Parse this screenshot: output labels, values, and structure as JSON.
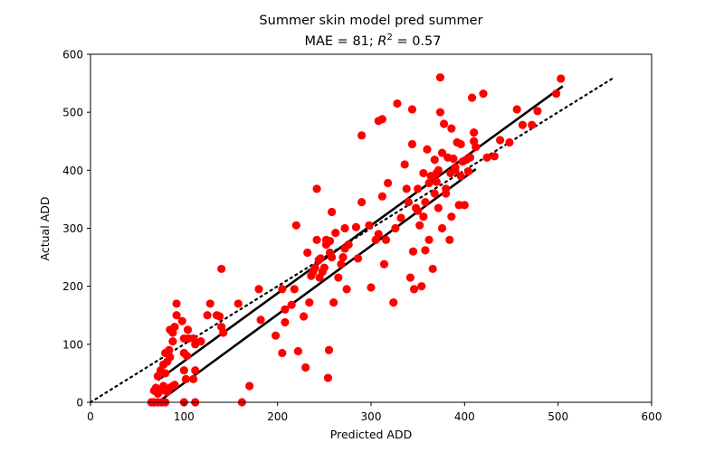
{
  "chart_data": {
    "type": "scatter",
    "title": "Summer skin model pred summer",
    "subtitle_prefix": "MAE = 81; ",
    "subtitle_r": "R",
    "subtitle_exp": "2",
    "subtitle_suffix": " = 0.57",
    "xlabel": "Predicted ADD",
    "ylabel": "Actual ADD",
    "xlim": [
      0,
      600
    ],
    "ylim": [
      0,
      600
    ],
    "xticks": [
      0,
      100,
      200,
      300,
      400,
      500,
      600
    ],
    "yticks": [
      0,
      100,
      200,
      300,
      400,
      500,
      600
    ],
    "grid": false,
    "legend": "none",
    "point_color": "#ff0000",
    "line_color": "#000000",
    "points": [
      [
        65,
        0
      ],
      [
        68,
        0
      ],
      [
        72,
        0
      ],
      [
        76,
        0
      ],
      [
        80,
        0
      ],
      [
        100,
        0
      ],
      [
        112,
        0
      ],
      [
        162,
        0
      ],
      [
        68,
        20
      ],
      [
        70,
        25
      ],
      [
        72,
        15
      ],
      [
        75,
        20
      ],
      [
        78,
        28
      ],
      [
        80,
        22
      ],
      [
        82,
        18
      ],
      [
        85,
        25
      ],
      [
        88,
        28
      ],
      [
        90,
        30
      ],
      [
        72,
        45
      ],
      [
        75,
        55
      ],
      [
        78,
        65
      ],
      [
        80,
        50
      ],
      [
        82,
        70
      ],
      [
        80,
        85
      ],
      [
        85,
        78
      ],
      [
        84,
        90
      ],
      [
        88,
        105
      ],
      [
        85,
        125
      ],
      [
        90,
        130
      ],
      [
        88,
        120
      ],
      [
        92,
        150
      ],
      [
        92,
        170
      ],
      [
        98,
        140
      ],
      [
        100,
        110
      ],
      [
        105,
        110
      ],
      [
        104,
        125
      ],
      [
        110,
        110
      ],
      [
        112,
        100
      ],
      [
        100,
        85
      ],
      [
        103,
        80
      ],
      [
        100,
        55
      ],
      [
        112,
        55
      ],
      [
        102,
        40
      ],
      [
        110,
        40
      ],
      [
        118,
        105
      ],
      [
        125,
        150
      ],
      [
        128,
        170
      ],
      [
        135,
        150
      ],
      [
        138,
        148
      ],
      [
        140,
        130
      ],
      [
        140,
        230
      ],
      [
        142,
        120
      ],
      [
        158,
        170
      ],
      [
        170,
        28
      ],
      [
        180,
        195
      ],
      [
        182,
        142
      ],
      [
        198,
        115
      ],
      [
        205,
        85
      ],
      [
        205,
        195
      ],
      [
        208,
        138
      ],
      [
        208,
        160
      ],
      [
        215,
        168
      ],
      [
        218,
        195
      ],
      [
        220,
        305
      ],
      [
        222,
        88
      ],
      [
        228,
        148
      ],
      [
        230,
        60
      ],
      [
        232,
        258
      ],
      [
        234,
        172
      ],
      [
        236,
        218
      ],
      [
        238,
        225
      ],
      [
        240,
        232
      ],
      [
        242,
        280
      ],
      [
        242,
        368
      ],
      [
        244,
        245
      ],
      [
        245,
        215
      ],
      [
        246,
        248
      ],
      [
        248,
        225
      ],
      [
        250,
        232
      ],
      [
        252,
        272
      ],
      [
        252,
        280
      ],
      [
        254,
        42
      ],
      [
        255,
        90
      ],
      [
        256,
        258
      ],
      [
        256,
        278
      ],
      [
        258,
        250
      ],
      [
        258,
        328
      ],
      [
        260,
        172
      ],
      [
        262,
        292
      ],
      [
        265,
        215
      ],
      [
        268,
        238
      ],
      [
        270,
        250
      ],
      [
        272,
        300
      ],
      [
        272,
        265
      ],
      [
        274,
        195
      ],
      [
        276,
        272
      ],
      [
        284,
        302
      ],
      [
        286,
        248
      ],
      [
        290,
        345
      ],
      [
        290,
        460
      ],
      [
        298,
        305
      ],
      [
        300,
        198
      ],
      [
        305,
        280
      ],
      [
        308,
        290
      ],
      [
        308,
        485
      ],
      [
        312,
        488
      ],
      [
        312,
        355
      ],
      [
        314,
        238
      ],
      [
        316,
        280
      ],
      [
        318,
        378
      ],
      [
        324,
        172
      ],
      [
        326,
        300
      ],
      [
        328,
        515
      ],
      [
        332,
        318
      ],
      [
        336,
        410
      ],
      [
        338,
        368
      ],
      [
        340,
        345
      ],
      [
        342,
        215
      ],
      [
        344,
        505
      ],
      [
        344,
        445
      ],
      [
        345,
        260
      ],
      [
        346,
        195
      ],
      [
        348,
        335
      ],
      [
        350,
        368
      ],
      [
        350,
        330
      ],
      [
        352,
        305
      ],
      [
        354,
        200
      ],
      [
        356,
        320
      ],
      [
        356,
        395
      ],
      [
        358,
        262
      ],
      [
        358,
        345
      ],
      [
        360,
        436
      ],
      [
        362,
        280
      ],
      [
        362,
        378
      ],
      [
        364,
        390
      ],
      [
        366,
        230
      ],
      [
        368,
        360
      ],
      [
        368,
        418
      ],
      [
        370,
        380
      ],
      [
        370,
        395
      ],
      [
        372,
        400
      ],
      [
        372,
        335
      ],
      [
        374,
        500
      ],
      [
        374,
        560
      ],
      [
        376,
        300
      ],
      [
        376,
        430
      ],
      [
        378,
        480
      ],
      [
        380,
        368
      ],
      [
        380,
        360
      ],
      [
        382,
        422
      ],
      [
        384,
        280
      ],
      [
        385,
        395
      ],
      [
        386,
        320
      ],
      [
        386,
        472
      ],
      [
        388,
        420
      ],
      [
        390,
        400
      ],
      [
        390,
        405
      ],
      [
        392,
        448
      ],
      [
        394,
        340
      ],
      [
        396,
        390
      ],
      [
        396,
        445
      ],
      [
        398,
        415
      ],
      [
        400,
        340
      ],
      [
        402,
        418
      ],
      [
        404,
        398
      ],
      [
        406,
        422
      ],
      [
        408,
        525
      ],
      [
        410,
        465
      ],
      [
        410,
        450
      ],
      [
        412,
        440
      ],
      [
        420,
        532
      ],
      [
        424,
        422
      ],
      [
        432,
        424
      ],
      [
        438,
        452
      ],
      [
        448,
        448
      ],
      [
        456,
        505
      ],
      [
        462,
        478
      ],
      [
        472,
        478
      ],
      [
        478,
        502
      ],
      [
        498,
        532
      ],
      [
        503,
        558
      ]
    ],
    "regression_lines": [
      [
        [
          72,
          38
        ],
        [
          505,
          545
        ]
      ],
      [
        [
          72,
          0
        ],
        [
          412,
          402
        ]
      ]
    ],
    "reference_line": [
      [
        0,
        0
      ],
      [
        560,
        560
      ]
    ]
  }
}
